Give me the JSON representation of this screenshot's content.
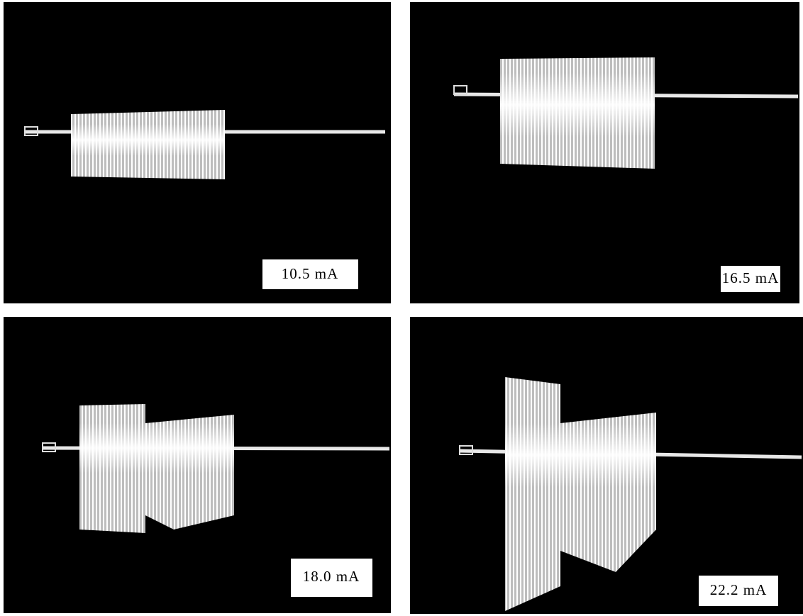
{
  "panels": [
    {
      "label": "10.5 mA"
    },
    {
      "label": "16.5 mA"
    },
    {
      "label": "18.0 mA"
    },
    {
      "label": "22.2 mA"
    }
  ]
}
